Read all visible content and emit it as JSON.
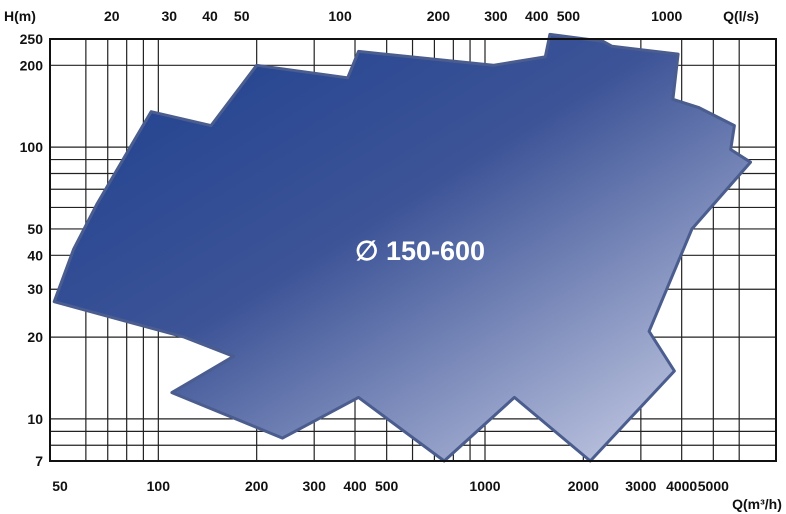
{
  "chart_data": {
    "type": "area",
    "title": "",
    "label": "∅ 150-600",
    "ylabel": "H(m)",
    "xlabel_bottom": "Q(m³/h)",
    "xlabel_top": "Q(l/s)",
    "yscale": "log",
    "xscale": "log",
    "ylim": [
      7,
      250
    ],
    "xlim_bottom": [
      48,
      6800
    ],
    "grid": true,
    "colors": {
      "fill_dark": "#1c3f8f",
      "fill_light": "#d4d8ec",
      "outline": "#4a5d8e",
      "grid": "#222222"
    },
    "y_ticks": [
      250,
      200,
      100,
      50,
      40,
      30,
      20,
      10,
      7
    ],
    "x_bottom_ticks": [
      50,
      100,
      200,
      300,
      400,
      500,
      1000,
      2000,
      3000,
      4000,
      5000
    ],
    "x_top_ticks": [
      20,
      30,
      40,
      50,
      100,
      200,
      300,
      400,
      500,
      1000
    ],
    "region": [
      [
        48,
        27
      ],
      [
        55,
        42
      ],
      [
        65,
        62
      ],
      [
        80,
        95
      ],
      [
        95,
        135
      ],
      [
        145,
        120
      ],
      [
        200,
        200
      ],
      [
        380,
        180
      ],
      [
        410,
        225
      ],
      [
        1060,
        200
      ],
      [
        1530,
        215
      ],
      [
        1580,
        260
      ],
      [
        2300,
        245
      ],
      [
        2450,
        235
      ],
      [
        3900,
        220
      ],
      [
        3760,
        150
      ],
      [
        4500,
        140
      ],
      [
        5800,
        120
      ],
      [
        5650,
        98
      ],
      [
        6500,
        88
      ],
      [
        4300,
        50
      ],
      [
        3180,
        21
      ],
      [
        3800,
        15
      ],
      [
        2100,
        7
      ],
      [
        1230,
        12
      ],
      [
        750,
        7
      ],
      [
        410,
        12
      ],
      [
        240,
        8.5
      ],
      [
        110,
        12.5
      ],
      [
        170,
        17
      ],
      [
        120,
        20
      ],
      [
        48,
        27
      ]
    ]
  }
}
